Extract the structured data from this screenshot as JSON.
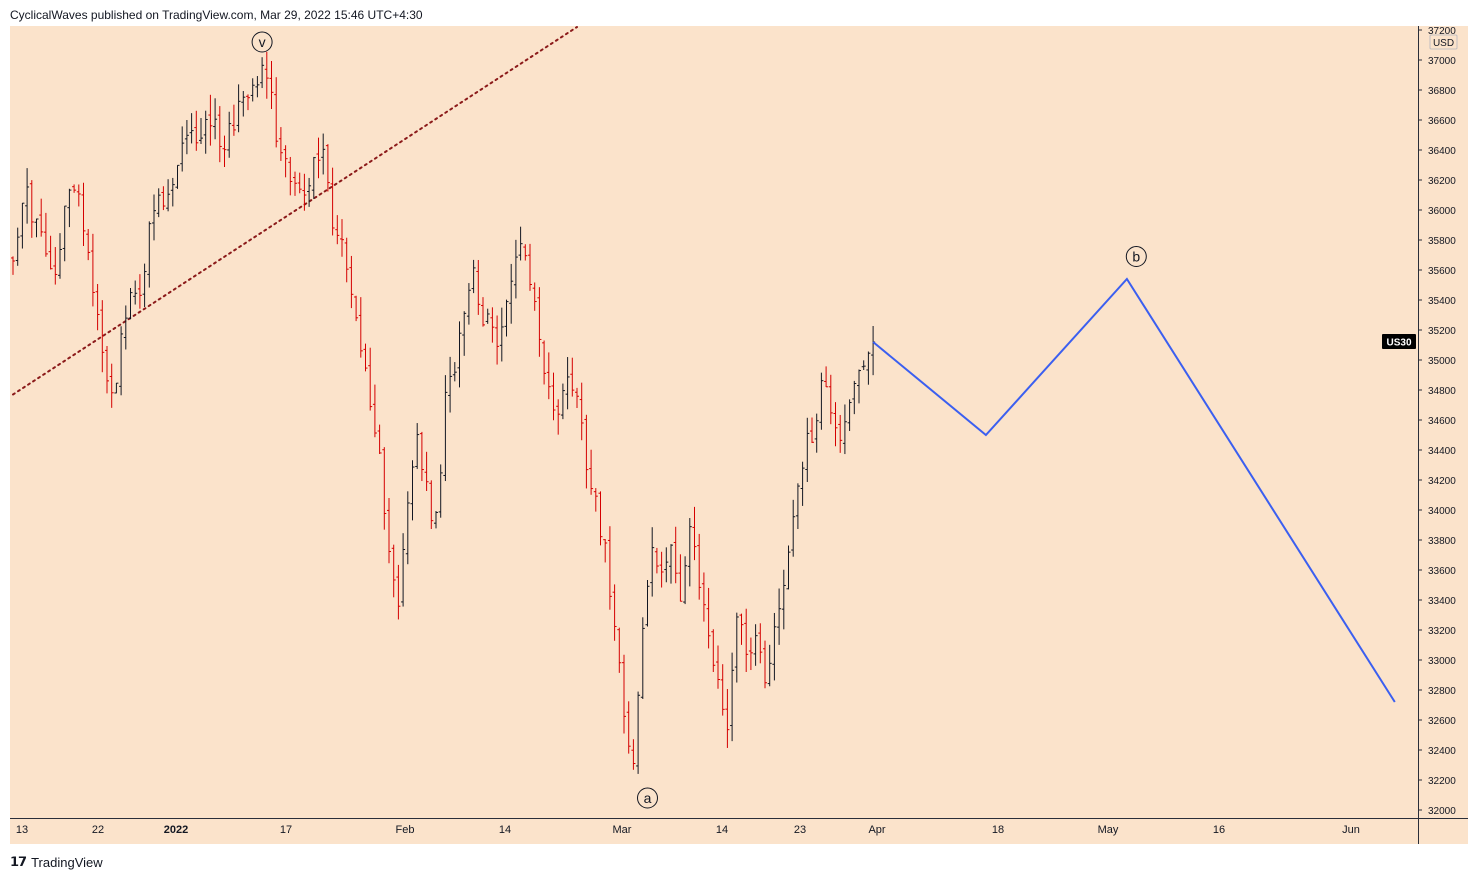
{
  "header": {
    "publisher_line": "CyclicalWaves published on TradingView.com, Mar 29, 2022 15:46 UTC+4:30"
  },
  "footer": {
    "brand": "TradingView"
  },
  "colors": {
    "background": "#fbe3cb",
    "candle_up": "#131722",
    "candle_down": "#d50000",
    "projection": "#3b5ff0",
    "trendline": "#8b1a1a"
  },
  "chart_data": {
    "type": "line",
    "symbol": "US30",
    "currency": "USD",
    "last_price": 35120,
    "ylim": [
      32000,
      37200
    ],
    "y_ticks": [
      32000,
      32200,
      32400,
      32600,
      32800,
      33000,
      33200,
      33400,
      33600,
      33800,
      34000,
      34200,
      34400,
      34600,
      34800,
      35000,
      35200,
      35400,
      35600,
      35800,
      36000,
      36200,
      36400,
      36600,
      36800,
      37000,
      37200
    ],
    "x_ticks": [
      "13",
      "22",
      "2022",
      "17",
      "Feb",
      "14",
      "Mar",
      "14",
      "23",
      "Apr",
      "18",
      "May",
      "16",
      "Jun"
    ],
    "series": [
      {
        "values": [
          [
            0,
            35750
          ],
          [
            3,
            36100
          ],
          [
            6,
            35800
          ],
          [
            9,
            35500
          ],
          [
            12,
            36200
          ],
          [
            15,
            35950
          ],
          [
            18,
            35300
          ],
          [
            21,
            34750
          ],
          [
            24,
            35300
          ],
          [
            27,
            35500
          ],
          [
            30,
            36000
          ],
          [
            33,
            36050
          ],
          [
            36,
            36400
          ],
          [
            39,
            36500
          ],
          [
            42,
            36600
          ],
          [
            45,
            36450
          ],
          [
            48,
            36700
          ],
          [
            51,
            36900
          ],
          [
            54,
            36950
          ],
          [
            56,
            36500
          ],
          [
            58,
            36350
          ],
          [
            60,
            36200
          ],
          [
            62,
            36050
          ],
          [
            64,
            36300
          ],
          [
            66,
            36400
          ],
          [
            68,
            35950
          ],
          [
            70,
            35800
          ],
          [
            72,
            35400
          ],
          [
            74,
            35150
          ],
          [
            76,
            34600
          ],
          [
            78,
            34300
          ],
          [
            80,
            33800
          ],
          [
            82,
            33400
          ],
          [
            84,
            34000
          ],
          [
            86,
            34500
          ],
          [
            88,
            34100
          ],
          [
            90,
            33900
          ],
          [
            92,
            34700
          ],
          [
            94,
            35000
          ],
          [
            96,
            35400
          ],
          [
            98,
            35600
          ],
          [
            100,
            35300
          ],
          [
            102,
            35150
          ],
          [
            104,
            35200
          ],
          [
            106,
            35500
          ],
          [
            108,
            35850
          ],
          [
            110,
            35550
          ],
          [
            112,
            35150
          ],
          [
            114,
            34800
          ],
          [
            116,
            34600
          ],
          [
            118,
            34950
          ],
          [
            120,
            34750
          ],
          [
            122,
            34350
          ],
          [
            124,
            34100
          ],
          [
            126,
            33700
          ],
          [
            128,
            33300
          ],
          [
            130,
            32700
          ],
          [
            132,
            32300
          ],
          [
            134,
            33200
          ],
          [
            136,
            33750
          ],
          [
            138,
            33500
          ],
          [
            140,
            33850
          ],
          [
            142,
            33400
          ],
          [
            144,
            33850
          ],
          [
            146,
            33500
          ],
          [
            148,
            33200
          ],
          [
            150,
            32800
          ],
          [
            152,
            32600
          ],
          [
            154,
            33300
          ],
          [
            156,
            33100
          ],
          [
            158,
            33150
          ],
          [
            160,
            32900
          ],
          [
            162,
            33200
          ],
          [
            164,
            33500
          ],
          [
            166,
            34000
          ],
          [
            168,
            34350
          ],
          [
            170,
            34500
          ],
          [
            172,
            34850
          ],
          [
            174,
            34700
          ],
          [
            176,
            34500
          ],
          [
            178,
            34750
          ],
          [
            180,
            34850
          ],
          [
            182,
            35000
          ],
          [
            183,
            35120
          ]
        ]
      }
    ],
    "projection": [
      [
        183,
        35120
      ],
      [
        207,
        34500
      ],
      [
        237,
        35540
      ],
      [
        294,
        32720
      ]
    ],
    "trendline": [
      [
        0,
        34770
      ],
      [
        120,
        37220
      ]
    ],
    "wave_labels": [
      {
        "label": "v",
        "x": 53,
        "y": 37120
      },
      {
        "label": "a",
        "x": 135,
        "y": 32080
      },
      {
        "label": "b",
        "x": 239,
        "y": 35690
      }
    ]
  }
}
